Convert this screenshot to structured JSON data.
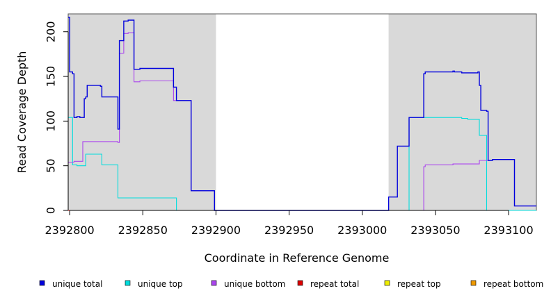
{
  "chart_data": {
    "type": "line",
    "step": true,
    "xlabel": "Coordinate in Reference Genome",
    "ylabel": "Read Coverage Depth",
    "xlim": [
      2392799,
      2393119
    ],
    "ylim": [
      0,
      220
    ],
    "xticks": [
      2392800,
      2392850,
      2392900,
      2392950,
      2393000,
      2393050,
      2393100
    ],
    "yticks": [
      0,
      50,
      100,
      150,
      200
    ],
    "shaded_regions": [
      {
        "x0": 2392799,
        "x1": 2392900
      },
      {
        "x0": 2393018,
        "x1": 2393119
      }
    ],
    "shade_color": "#d9d9d9",
    "legend_position": "bottom",
    "series": [
      {
        "name": "unique total",
        "color": "#0000dd",
        "points": [
          [
            2392799,
            216
          ],
          [
            2392800,
            155
          ],
          [
            2392802,
            153
          ],
          [
            2392803,
            104
          ],
          [
            2392805,
            105
          ],
          [
            2392807,
            104
          ],
          [
            2392810,
            125
          ],
          [
            2392811,
            127
          ],
          [
            2392812,
            140
          ],
          [
            2392821,
            139
          ],
          [
            2392822,
            127
          ],
          [
            2392833,
            91
          ],
          [
            2392834,
            190
          ],
          [
            2392837,
            212
          ],
          [
            2392840,
            213
          ],
          [
            2392844,
            158
          ],
          [
            2392848,
            159
          ],
          [
            2392871,
            138
          ],
          [
            2392873,
            123
          ],
          [
            2392883,
            22
          ],
          [
            2392899,
            0
          ],
          [
            2393018,
            15
          ],
          [
            2393024,
            72
          ],
          [
            2393032,
            104
          ],
          [
            2393042,
            153
          ],
          [
            2393043,
            155
          ],
          [
            2393062,
            156
          ],
          [
            2393063,
            155
          ],
          [
            2393068,
            154
          ],
          [
            2393079,
            155
          ],
          [
            2393080,
            140
          ],
          [
            2393081,
            112
          ],
          [
            2393085,
            111
          ],
          [
            2393086,
            56
          ],
          [
            2393089,
            57
          ],
          [
            2393104,
            5
          ],
          [
            2393119,
            5
          ]
        ]
      },
      {
        "name": "unique top",
        "color": "#00dddd",
        "points": [
          [
            2392799,
            104
          ],
          [
            2392802,
            51
          ],
          [
            2392805,
            50
          ],
          [
            2392811,
            63
          ],
          [
            2392822,
            51
          ],
          [
            2392833,
            14
          ],
          [
            2392873,
            0
          ],
          [
            2393018,
            0
          ],
          [
            2393032,
            104
          ],
          [
            2393068,
            103
          ],
          [
            2393072,
            102
          ],
          [
            2393080,
            84
          ],
          [
            2393085,
            0
          ],
          [
            2393119,
            0
          ]
        ]
      },
      {
        "name": "unique bottom",
        "color": "#aa44ee",
        "points": [
          [
            2392799,
            54
          ],
          [
            2392803,
            55
          ],
          [
            2392809,
            77
          ],
          [
            2392833,
            76
          ],
          [
            2392834,
            176
          ],
          [
            2392837,
            198
          ],
          [
            2392840,
            199
          ],
          [
            2392844,
            144
          ],
          [
            2392848,
            145
          ],
          [
            2392871,
            123
          ],
          [
            2392883,
            22
          ],
          [
            2392899,
            0
          ],
          [
            2393042,
            49
          ],
          [
            2393043,
            51
          ],
          [
            2393062,
            52
          ],
          [
            2393080,
            56
          ],
          [
            2393089,
            57
          ],
          [
            2393104,
            5
          ],
          [
            2393119,
            5
          ]
        ]
      },
      {
        "name": "repeat total",
        "color": "#dd0000",
        "points": [
          [
            2392799,
            0
          ],
          [
            2393119,
            0
          ]
        ]
      },
      {
        "name": "repeat top",
        "color": "#eeee00",
        "points": [
          [
            2392799,
            0
          ],
          [
            2393119,
            0
          ]
        ]
      },
      {
        "name": "repeat bottom",
        "color": "#ee9900",
        "points": [
          [
            2392799,
            0
          ],
          [
            2393119,
            0
          ]
        ]
      }
    ]
  }
}
